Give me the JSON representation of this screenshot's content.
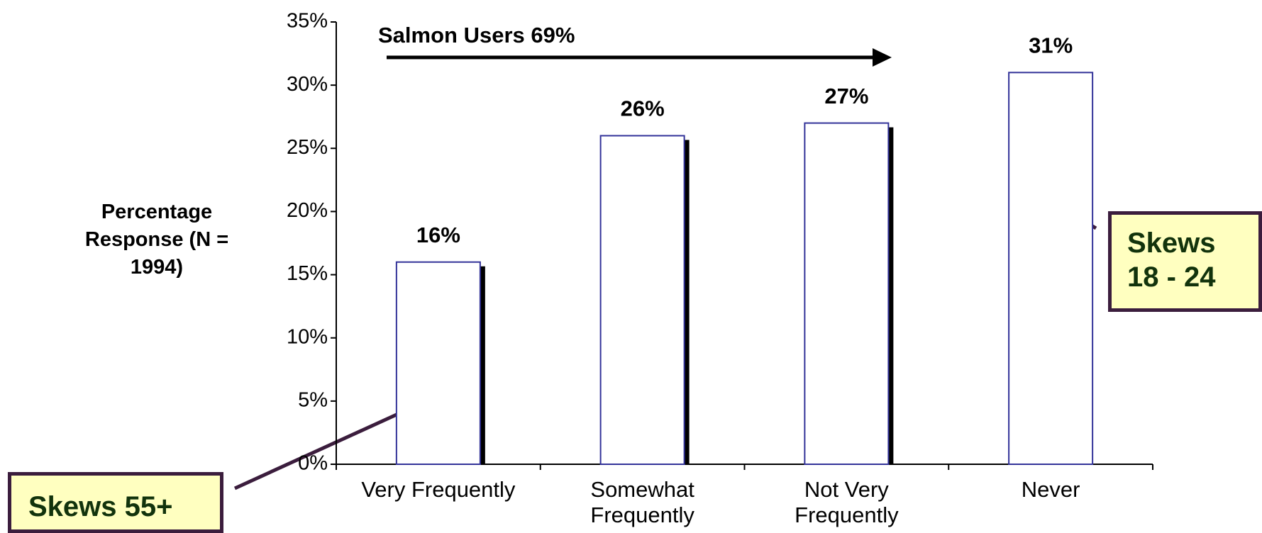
{
  "chart_data": {
    "type": "bar",
    "y_axis_label": "Percentage Response (N = 1994)",
    "categories": [
      "Very Frequently",
      "Somewhat Frequently",
      "Not Very Frequently",
      "Never"
    ],
    "values": [
      16,
      26,
      27,
      31
    ],
    "value_labels": [
      "16%",
      "26%",
      "27%",
      "31%"
    ],
    "color": "#333399",
    "ylim": [
      0,
      35
    ],
    "yticks": [
      {
        "value": 0,
        "label": "0%"
      },
      {
        "value": 5,
        "label": "5%"
      },
      {
        "value": 10,
        "label": "10%"
      },
      {
        "value": 15,
        "label": "15%"
      },
      {
        "value": 20,
        "label": "20%"
      },
      {
        "value": 25,
        "label": "25%"
      },
      {
        "value": 30,
        "label": "30%"
      },
      {
        "value": 35,
        "label": "35%"
      }
    ],
    "annotations": [
      "Salmon Users 69%",
      "Skews 55+",
      "Skews 18 - 24"
    ]
  }
}
